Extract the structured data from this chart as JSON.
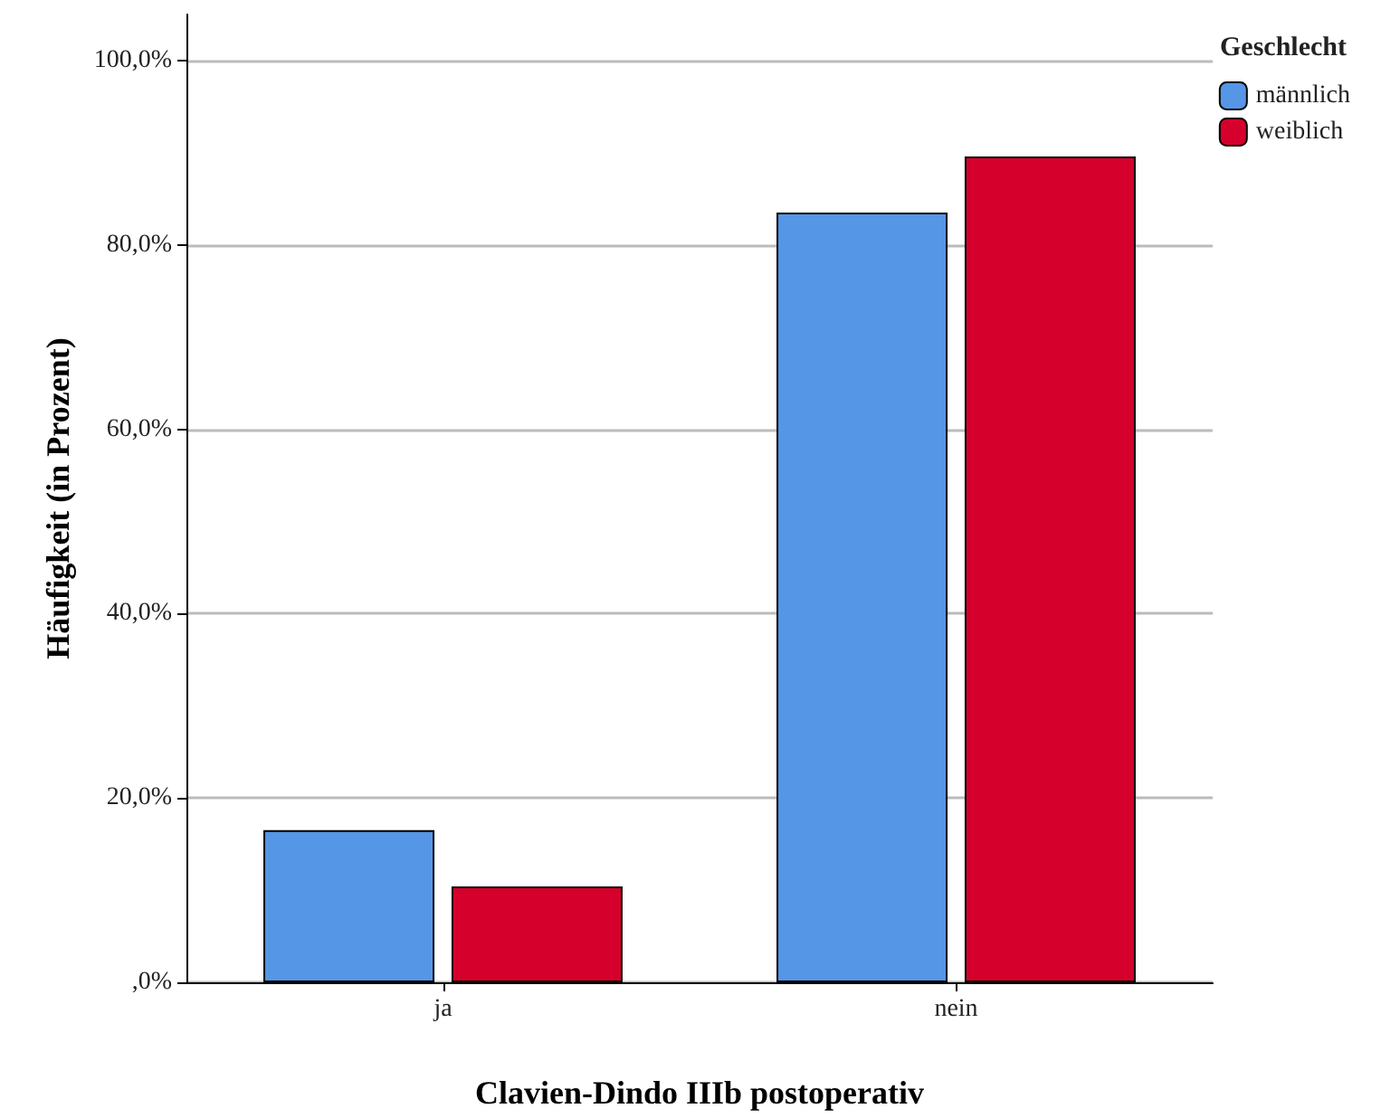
{
  "chart_data": {
    "type": "bar",
    "xlabel": "Clavien-Dindo IIIb postoperativ",
    "ylabel": "Häufigkeit (in Prozent)",
    "legend_title": "Geschlecht",
    "categories": [
      "ja",
      "nein"
    ],
    "series": [
      {
        "name": "männlich",
        "color": "#5596e6",
        "values": [
          16.5,
          83.5
        ]
      },
      {
        "name": "weiblich",
        "color": "#d6002c",
        "values": [
          10.4,
          89.6
        ]
      }
    ],
    "ylim": [
      0,
      105
    ],
    "yticks": [
      {
        "value": 0,
        "label": ",0%"
      },
      {
        "value": 20,
        "label": "20,0%"
      },
      {
        "value": 40,
        "label": "40,0%"
      },
      {
        "value": 60,
        "label": "60,0%"
      },
      {
        "value": 80,
        "label": "80,0%"
      },
      {
        "value": 100,
        "label": "100,0%"
      }
    ],
    "grid": "y",
    "legend": "top right"
  }
}
